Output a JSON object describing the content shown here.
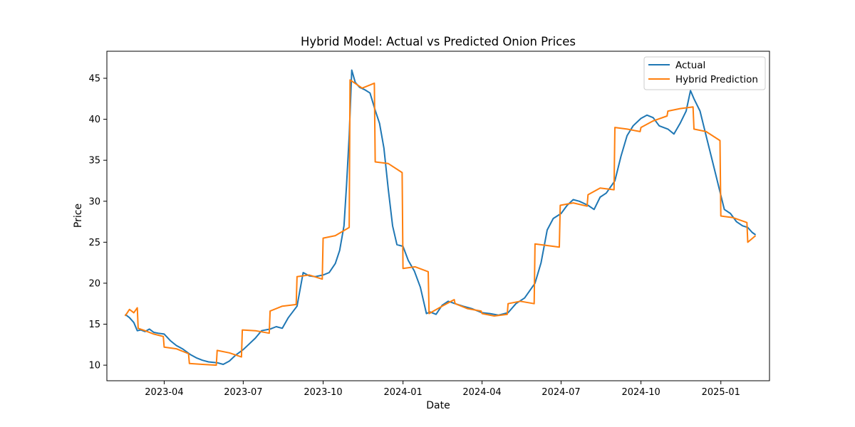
{
  "chart_data": {
    "type": "line",
    "title": "Hybrid Model: Actual vs Predicted Onion Prices",
    "xlabel": "Date",
    "ylabel": "Price",
    "x_ticks": [
      "2023-04-01",
      "2023-07-01",
      "2023-10-01",
      "2024-01-01",
      "2024-04-01",
      "2024-07-01",
      "2024-10-01",
      "2025-01-01"
    ],
    "x_tick_labels": [
      "2023-04",
      "2023-07",
      "2023-10",
      "2024-01",
      "2024-04",
      "2024-07",
      "2024-10",
      "2025-01"
    ],
    "y_ticks": [
      10,
      15,
      20,
      25,
      30,
      35,
      40,
      45
    ],
    "xlim": [
      "2023-01-25",
      "2025-02-26"
    ],
    "ylim": [
      8.1,
      48.3
    ],
    "grid": false,
    "legend_position": "top-right",
    "series": [
      {
        "name": "Actual",
        "color": "#1f77b4",
        "x": [
          "2023-02-15",
          "2023-02-20",
          "2023-02-25",
          "2023-03-01",
          "2023-03-05",
          "2023-03-10",
          "2023-03-15",
          "2023-03-20",
          "2023-03-25",
          "2023-04-01",
          "2023-04-08",
          "2023-04-15",
          "2023-04-22",
          "2023-05-01",
          "2023-05-08",
          "2023-05-15",
          "2023-05-22",
          "2023-06-01",
          "2023-06-08",
          "2023-06-15",
          "2023-06-22",
          "2023-07-01",
          "2023-07-08",
          "2023-07-15",
          "2023-07-22",
          "2023-08-01",
          "2023-08-08",
          "2023-08-15",
          "2023-08-22",
          "2023-09-01",
          "2023-09-08",
          "2023-09-15",
          "2023-09-22",
          "2023-10-01",
          "2023-10-08",
          "2023-10-15",
          "2023-10-20",
          "2023-10-25",
          "2023-10-28",
          "2023-10-31",
          "2023-11-03",
          "2023-11-07",
          "2023-11-12",
          "2023-11-18",
          "2023-11-24",
          "2023-11-30",
          "2023-12-05",
          "2023-12-10",
          "2023-12-15",
          "2023-12-20",
          "2023-12-25",
          "2024-01-01",
          "2024-01-07",
          "2024-01-14",
          "2024-01-21",
          "2024-01-28",
          "2024-02-01",
          "2024-02-08",
          "2024-02-15",
          "2024-02-22",
          "2024-03-01",
          "2024-03-10",
          "2024-03-20",
          "2024-04-01",
          "2024-04-10",
          "2024-04-20",
          "2024-05-01",
          "2024-05-10",
          "2024-05-20",
          "2024-06-01",
          "2024-06-08",
          "2024-06-15",
          "2024-06-22",
          "2024-07-01",
          "2024-07-08",
          "2024-07-15",
          "2024-07-22",
          "2024-08-01",
          "2024-08-08",
          "2024-08-15",
          "2024-08-22",
          "2024-09-01",
          "2024-09-08",
          "2024-09-15",
          "2024-09-22",
          "2024-10-01",
          "2024-10-08",
          "2024-10-15",
          "2024-10-22",
          "2024-11-01",
          "2024-11-08",
          "2024-11-15",
          "2024-11-22",
          "2024-11-27",
          "2024-12-01",
          "2024-12-08",
          "2024-12-15",
          "2024-12-22",
          "2024-12-29",
          "2025-01-05",
          "2025-01-12",
          "2025-01-19",
          "2025-01-26",
          "2025-02-01",
          "2025-02-06",
          "2025-02-10"
        ],
        "y": [
          16.2,
          15.8,
          15.2,
          14.2,
          14.3,
          14.1,
          14.4,
          14.0,
          13.9,
          13.8,
          13.0,
          12.4,
          12.0,
          11.3,
          10.9,
          10.6,
          10.4,
          10.3,
          10.1,
          10.5,
          11.2,
          11.9,
          12.6,
          13.3,
          14.2,
          14.4,
          14.7,
          14.5,
          15.8,
          17.2,
          21.3,
          20.9,
          20.8,
          21.0,
          21.3,
          22.4,
          24.0,
          27.0,
          32.0,
          38.0,
          46.0,
          44.5,
          43.9,
          43.6,
          43.2,
          41.1,
          39.5,
          36.5,
          31.5,
          27.0,
          24.7,
          24.5,
          22.8,
          21.5,
          19.5,
          16.3,
          16.5,
          16.2,
          17.3,
          17.8,
          17.5,
          17.2,
          16.9,
          16.4,
          16.3,
          16.1,
          16.4,
          17.5,
          18.2,
          20.0,
          22.5,
          26.5,
          27.9,
          28.5,
          29.5,
          30.2,
          30.0,
          29.5,
          29.0,
          30.5,
          31.0,
          32.5,
          35.5,
          38.0,
          39.2,
          40.1,
          40.5,
          40.2,
          39.2,
          38.8,
          38.2,
          39.5,
          41.0,
          43.5,
          42.5,
          41.0,
          38.0,
          35.0,
          32.0,
          29.0,
          28.5,
          27.5,
          27.0,
          26.8,
          26.2,
          25.9
        ]
      },
      {
        "name": "Hybrid Prediction",
        "color": "#ff7f0e",
        "x": [
          "2023-02-15",
          "2023-02-20",
          "2023-02-25",
          "2023-03-01",
          "2023-03-02",
          "2023-03-10",
          "2023-03-20",
          "2023-03-31",
          "2023-04-01",
          "2023-04-15",
          "2023-04-29",
          "2023-04-30",
          "2023-05-15",
          "2023-05-31",
          "2023-06-01",
          "2023-06-15",
          "2023-06-29",
          "2023-06-30",
          "2023-07-15",
          "2023-07-31",
          "2023-08-01",
          "2023-08-15",
          "2023-08-31",
          "2023-09-01",
          "2023-09-15",
          "2023-09-30",
          "2023-10-01",
          "2023-10-15",
          "2023-10-31",
          "2023-11-01",
          "2023-11-15",
          "2023-11-29",
          "2023-11-30",
          "2023-12-15",
          "2023-12-31",
          "2024-01-01",
          "2024-01-15",
          "2024-01-30",
          "2024-01-31",
          "2024-02-15",
          "2024-02-29",
          "2024-03-01",
          "2024-03-15",
          "2024-03-31",
          "2024-04-01",
          "2024-04-15",
          "2024-04-30",
          "2024-05-01",
          "2024-05-15",
          "2024-05-31",
          "2024-06-01",
          "2024-06-15",
          "2024-06-29",
          "2024-06-30",
          "2024-07-15",
          "2024-07-31",
          "2024-08-01",
          "2024-08-15",
          "2024-08-31",
          "2024-09-01",
          "2024-09-15",
          "2024-09-30",
          "2024-10-01",
          "2024-10-15",
          "2024-10-31",
          "2024-11-01",
          "2024-11-15",
          "2024-11-30",
          "2024-12-01",
          "2024-12-15",
          "2024-12-31",
          "2025-01-01",
          "2025-01-15",
          "2025-01-31",
          "2025-02-01",
          "2025-02-10"
        ],
        "y": [
          16.0,
          16.8,
          16.4,
          17.0,
          14.5,
          14.2,
          13.8,
          13.5,
          12.2,
          12.0,
          11.4,
          10.2,
          10.1,
          10.0,
          11.8,
          11.5,
          11.0,
          14.3,
          14.2,
          13.9,
          16.6,
          17.2,
          17.4,
          20.8,
          21.0,
          20.5,
          25.5,
          25.8,
          26.8,
          44.8,
          43.8,
          44.4,
          34.8,
          34.6,
          33.5,
          21.8,
          22.0,
          21.4,
          16.3,
          17.2,
          18.0,
          17.5,
          16.9,
          16.6,
          16.3,
          16.0,
          16.2,
          17.5,
          17.8,
          17.5,
          24.8,
          24.6,
          24.4,
          29.5,
          29.8,
          29.4,
          30.8,
          31.6,
          31.4,
          39.0,
          38.8,
          38.5,
          39.0,
          39.8,
          40.4,
          41.0,
          41.3,
          41.5,
          38.8,
          38.5,
          37.4,
          28.2,
          28.0,
          27.4,
          25.0,
          25.8
        ]
      }
    ]
  }
}
